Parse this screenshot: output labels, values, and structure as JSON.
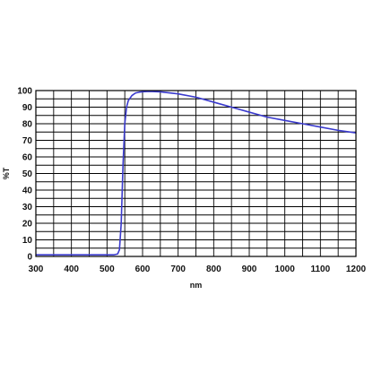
{
  "chart_data": {
    "type": "line",
    "title": "",
    "xlabel": "nm",
    "ylabel": "%T",
    "xlim": [
      300,
      1200
    ],
    "ylim": [
      0,
      100
    ],
    "x_ticks": [
      "300",
      "400",
      "500",
      "600",
      "700",
      "800",
      "900",
      "1000",
      "1100",
      "1200"
    ],
    "y_ticks": [
      "0",
      "10",
      "20",
      "30",
      "40",
      "50",
      "60",
      "70",
      "80",
      "90",
      "100"
    ],
    "grid": "on",
    "legend": "none",
    "series": [
      {
        "color": "#3a3acd",
        "x": [
          300,
          400,
          500,
          520,
          530,
          535,
          540,
          545,
          550,
          555,
          560,
          570,
          580,
          590,
          600,
          620,
          650,
          700,
          750,
          800,
          850,
          900,
          950,
          1000,
          1050,
          1100,
          1150,
          1200
        ],
        "y": [
          1,
          1,
          1,
          1,
          1.5,
          4,
          20,
          55,
          80,
          90,
          94,
          97,
          98.5,
          99,
          99.3,
          99.5,
          99.2,
          98,
          96,
          93,
          90,
          87,
          84,
          82,
          80,
          78,
          76,
          74.5
        ]
      }
    ]
  }
}
